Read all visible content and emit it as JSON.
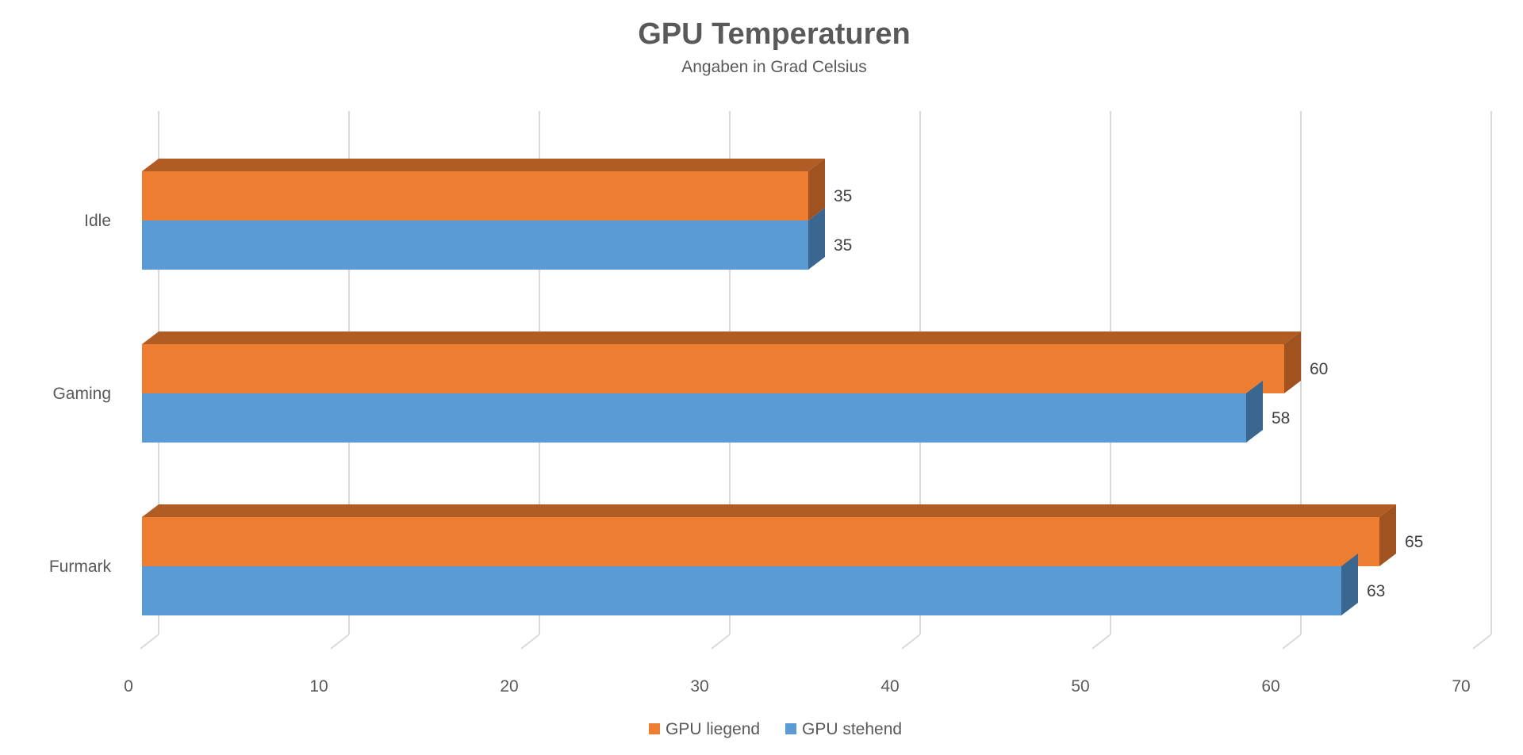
{
  "chart_data": {
    "type": "bar",
    "orientation": "horizontal",
    "style": "3d-clustered",
    "title": "GPU Temperaturen",
    "subtitle": "Angaben in Grad Celsius",
    "categories": [
      "Idle",
      "Gaming",
      "Furmark"
    ],
    "series": [
      {
        "name": "GPU liegend",
        "values": [
          35,
          60,
          65
        ],
        "color": "#ED7D31",
        "side_color": "#A0521F",
        "top_color": "#B25C25"
      },
      {
        "name": "GPU stehend",
        "values": [
          35,
          58,
          63
        ],
        "color": "#5B9BD5",
        "side_color": "#3A6690",
        "top_color": "#4A7FB0"
      }
    ],
    "xlim": [
      0,
      70
    ],
    "xticks": [
      0,
      10,
      20,
      30,
      40,
      50,
      60,
      70
    ],
    "xlabel": "",
    "ylabel": "",
    "grid": true,
    "legend_position": "bottom",
    "data_labels": true
  }
}
